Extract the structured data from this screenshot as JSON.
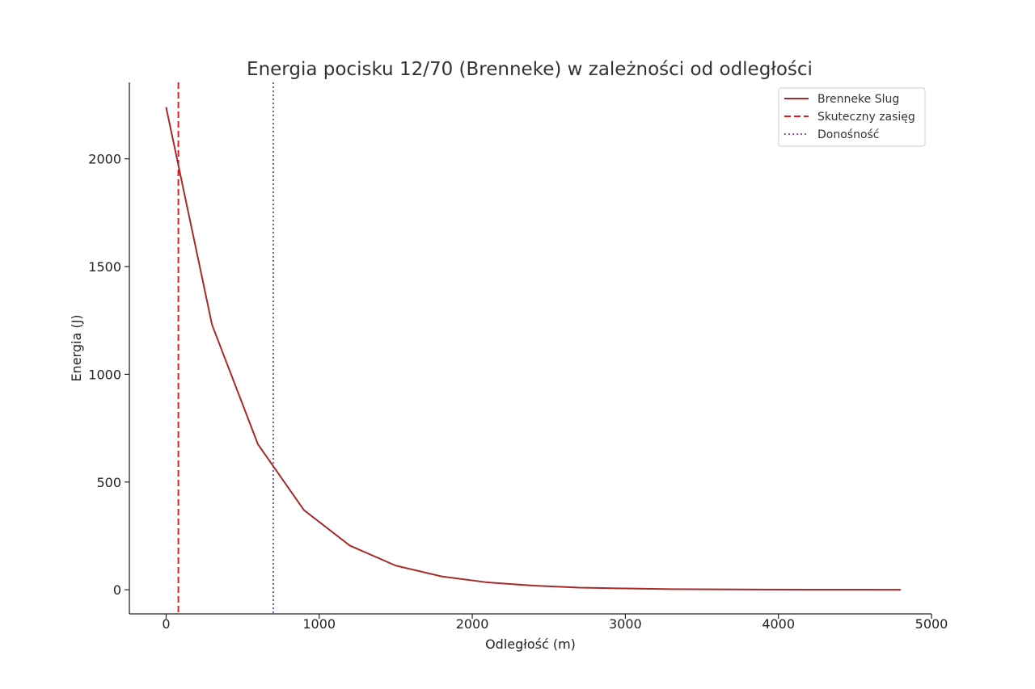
{
  "chart_data": {
    "type": "line",
    "title": "Energia pocisku 12/70 (Brenneke) w zależności od odległości",
    "xlabel": "Odległość (m)",
    "ylabel": "Energia (J)",
    "xlim": [
      -240,
      5000
    ],
    "ylim": [
      -112,
      2355
    ],
    "xticks": [
      0,
      1000,
      2000,
      3000,
      4000,
      5000
    ],
    "yticks": [
      0,
      500,
      1000,
      1500,
      2000
    ],
    "grid": false,
    "legend_position": "top-right",
    "series": [
      {
        "name": "Brenneke Slug",
        "style": "solid",
        "color": "#a52a2a",
        "x": [
          0,
          300,
          600,
          900,
          1200,
          1500,
          1800,
          2100,
          2400,
          2700,
          3000,
          3300,
          3600,
          3900,
          4200,
          4500,
          4800
        ],
        "y": [
          2240,
          1230,
          675,
          370,
          205,
          112,
          62,
          34,
          19,
          10,
          6,
          3,
          2,
          1,
          0.5,
          0.3,
          0.2
        ]
      }
    ],
    "vlines": [
      {
        "name": "Skuteczny zasięg",
        "x": 80,
        "style": "dashed",
        "color": "#e31a1c"
      },
      {
        "name": "Donośność",
        "x": 700,
        "style": "dotted",
        "color": "#7b1fa2"
      }
    ]
  }
}
